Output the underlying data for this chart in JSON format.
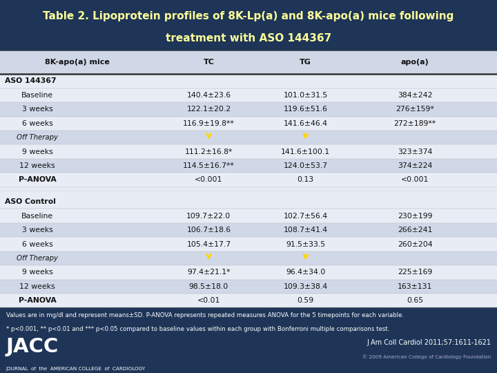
{
  "title_line1": "Table 2. Lipoprotein profiles of 8K-Lp(a) and 8K-apo(a) mice following",
  "title_line2": "treatment with ASO 144367",
  "title_bg": "#2E4B6E",
  "title_color": "#FFFF99",
  "table_bg_light": "#E8EDF5",
  "table_bg_dark": "#D0D8E8",
  "header_bg": "#D0D8E8",
  "header_row": [
    "8K-apo(a) mice",
    "TC",
    "TG",
    "apo(a)"
  ],
  "sections": [
    {
      "section_label": "ASO 144367",
      "rows": [
        {
          "label": "Baseline",
          "tc": "140.4±23.6",
          "tg": "101.0±31.5",
          "apoa": "384±242",
          "type": "data"
        },
        {
          "label": "3 weeks",
          "tc": "122.1±20.2",
          "tg": "119.6±51.6",
          "apoa": "276±159*",
          "type": "data"
        },
        {
          "label": "6 weeks",
          "tc": "116.9±19.8**",
          "tg": "141.6±46.4",
          "apoa": "272±189**",
          "type": "data"
        },
        {
          "label": "Off Therapy",
          "tc": "",
          "tg": "",
          "apoa": "",
          "type": "offtherapy",
          "arrow_tc": true,
          "arrow_tg": true
        },
        {
          "label": "9 weeks",
          "tc": "111.2±16.8*",
          "tg": "141.6±100.1",
          "apoa": "323±374",
          "type": "data"
        },
        {
          "label": "12 weeks",
          "tc": "114.5±16.7**",
          "tg": "124.0±53.7",
          "apoa": "374±224",
          "type": "data"
        },
        {
          "label": "P-ANOVA",
          "tc": "<0.001",
          "tg": "0.13",
          "apoa": "<0.001",
          "type": "panova"
        }
      ]
    },
    {
      "section_label": "ASO Control",
      "rows": [
        {
          "label": "Baseline",
          "tc": "109.7±22.0",
          "tg": "102.7±56.4",
          "apoa": "230±199",
          "type": "data"
        },
        {
          "label": "3 weeks",
          "tc": "106.7±18.6",
          "tg": "108.7±41.4",
          "apoa": "266±241",
          "type": "data"
        },
        {
          "label": "6 weeks",
          "tc": "105.4±17.7",
          "tg": "91.5±33.5",
          "apoa": "260±204",
          "type": "data"
        },
        {
          "label": "Off Therapy",
          "tc": "",
          "tg": "",
          "apoa": "",
          "type": "offtherapy",
          "arrow_tc": true,
          "arrow_tg": true
        },
        {
          "label": "9 weeks",
          "tc": "97.4±21.1*",
          "tg": "96.4±34.0",
          "apoa": "225±169",
          "type": "data"
        },
        {
          "label": "12 weeks",
          "tc": "98.5±18.0",
          "tg": "109.3±38.4",
          "apoa": "163±131",
          "type": "data"
        },
        {
          "label": "P-ANOVA",
          "tc": "<0.01",
          "tg": "0.59",
          "apoa": "0.65",
          "type": "panova"
        }
      ]
    }
  ],
  "footnote1": "Values are in mg/dl and represent means±SD. P-ANOVA represents repeated measures ANOVA for the 5 timepoints for each variable.",
  "footnote2": "* p<0.001, ** p<0.01 and *** p<0.05 compared to baseline values within each group with Bonferroni multiple comparisons test.",
  "jacc_text": "J Am Coll Cardiol 2011;57:1611-1621",
  "copyright_text": "© 2009 American College of Cardiology Foundation",
  "arrow_color": "#FFD700",
  "footer_bg": "#1E3558"
}
